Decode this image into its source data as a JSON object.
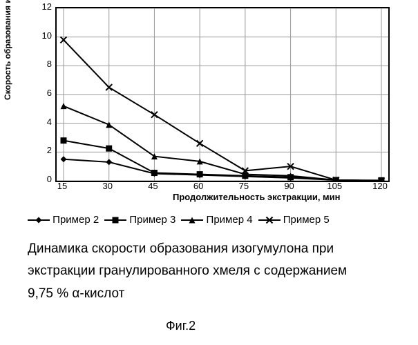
{
  "chart": {
    "type": "line",
    "ylabel": "Скорость образования изогумулона, мг/л в мин",
    "xlabel": "Продолжительность экстракции, мин",
    "x_values": [
      15,
      30,
      45,
      60,
      75,
      90,
      105,
      120
    ],
    "ylim": [
      0,
      12
    ],
    "ytick_step": 2,
    "yticks": [
      0,
      2,
      4,
      6,
      8,
      10,
      12
    ],
    "xlim_index": [
      0,
      7
    ],
    "axis_fontsize": 13,
    "tick_fontsize": 13,
    "axis_color": "#000000",
    "grid_color": "#999999",
    "background_color": "#ffffff",
    "plot_border_color": "#000000",
    "line_width": 2,
    "marker_size": 9,
    "series": [
      {
        "name": "Пример 2",
        "marker": "diamond",
        "color": "#000000",
        "values": [
          1.5,
          1.3,
          0.5,
          0.4,
          0.3,
          0.2,
          0.05,
          0.0
        ]
      },
      {
        "name": "Пример 3",
        "marker": "square",
        "color": "#000000",
        "values": [
          2.8,
          2.25,
          0.55,
          0.45,
          0.35,
          0.25,
          0.05,
          0.03
        ]
      },
      {
        "name": "Пример 4",
        "marker": "triangle",
        "color": "#000000",
        "values": [
          5.2,
          3.9,
          1.7,
          1.35,
          0.45,
          0.35,
          0.05,
          0.0
        ]
      },
      {
        "name": "Пример 5",
        "marker": "x",
        "color": "#000000",
        "values": [
          9.8,
          6.5,
          4.6,
          2.6,
          0.7,
          1.0,
          0.05,
          0.0
        ]
      }
    ]
  },
  "legend": {
    "items": [
      {
        "label": "Пример 2"
      },
      {
        "label": "Пример 3"
      },
      {
        "label": "Пример 4"
      },
      {
        "label": "Пример 5"
      }
    ]
  },
  "caption": {
    "line1": "Динамика скорости образования изогумулона при",
    "line2": "экстракции гранулированного хмеля с содержанием",
    "line3": "9,75 % α-кислот",
    "fontsize": 19
  },
  "figure_label": "Фиг.2"
}
